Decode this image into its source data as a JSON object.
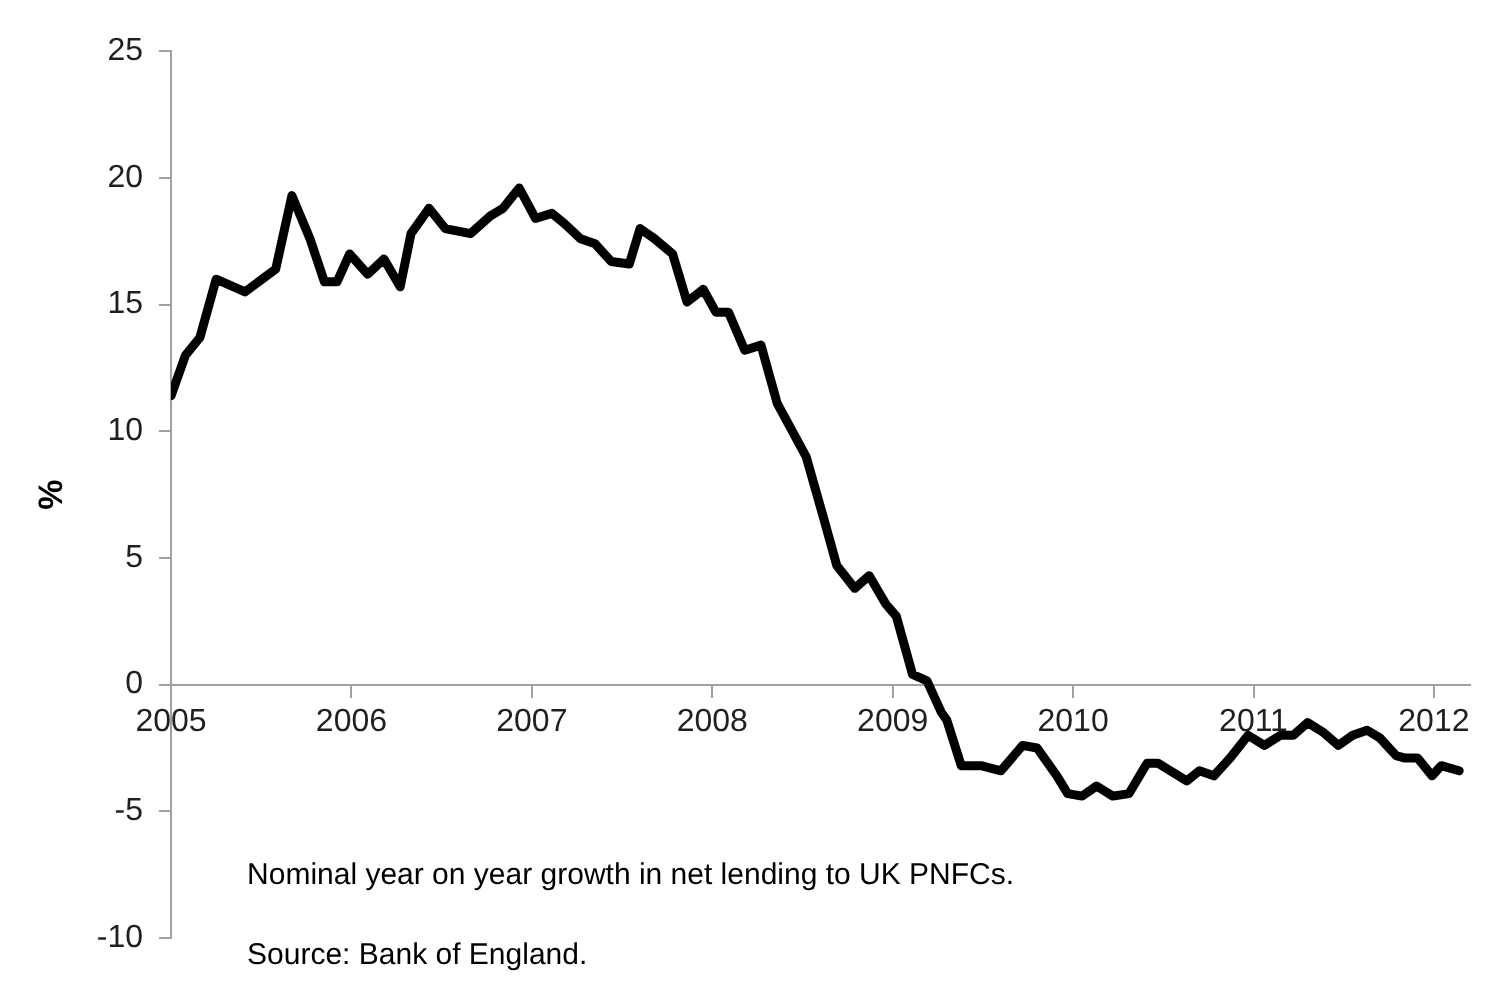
{
  "chart_data": {
    "type": "line",
    "ylabel": "%",
    "annotations": [
      "Nominal year on year growth in net lending to UK PNFCs.",
      "Source: Bank of England."
    ],
    "x": [
      2005.0,
      2005.08,
      2005.16,
      2005.25,
      2005.41,
      2005.58,
      2005.67,
      2005.77,
      2005.85,
      2005.92,
      2005.99,
      2006.09,
      2006.18,
      2006.27,
      2006.33,
      2006.43,
      2006.52,
      2006.66,
      2006.77,
      2006.84,
      2006.93,
      2007.02,
      2007.11,
      2007.18,
      2007.27,
      2007.35,
      2007.44,
      2007.54,
      2007.6,
      2007.68,
      2007.78,
      2007.86,
      2007.95,
      2008.02,
      2008.09,
      2008.18,
      2008.27,
      2008.36,
      2008.52,
      2008.62,
      2008.69,
      2008.79,
      2008.87,
      2008.96,
      2009.02,
      2009.11,
      2009.19,
      2009.27,
      2009.3,
      2009.38,
      2009.49,
      2009.6,
      2009.72,
      2009.8,
      2009.91,
      2009.97,
      2010.05,
      2010.13,
      2010.22,
      2010.31,
      2010.41,
      2010.47,
      2010.63,
      2010.7,
      2010.78,
      2010.87,
      2010.97,
      2011.06,
      2011.15,
      2011.22,
      2011.3,
      2011.39,
      2011.47,
      2011.55,
      2011.63,
      2011.7,
      2011.79,
      2011.84,
      2011.91,
      2011.99,
      2012.04,
      2012.14
    ],
    "series": [
      {
        "color": "#000000",
        "values": [
          11.4,
          13.0,
          13.7,
          16.0,
          15.5,
          16.4,
          19.3,
          17.6,
          15.9,
          15.9,
          17.0,
          16.2,
          16.8,
          15.7,
          17.8,
          18.8,
          18.0,
          17.8,
          18.5,
          18.8,
          19.6,
          18.4,
          18.6,
          18.2,
          17.6,
          17.4,
          16.7,
          16.6,
          18.0,
          17.6,
          17.0,
          15.1,
          15.6,
          14.7,
          14.7,
          13.2,
          13.4,
          11.1,
          9.0,
          6.5,
          4.7,
          3.8,
          4.3,
          3.2,
          2.7,
          0.4,
          0.15,
          -1.1,
          -1.4,
          -3.2,
          -3.2,
          -3.4,
          -2.4,
          -2.5,
          -3.6,
          -4.3,
          -4.4,
          -4.0,
          -4.4,
          -4.3,
          -3.1,
          -3.1,
          -3.8,
          -3.4,
          -3.6,
          -2.9,
          -2.0,
          -2.4,
          -2.0,
          -2.0,
          -1.5,
          -1.9,
          -2.4,
          -2.0,
          -1.8,
          -2.1,
          -2.8,
          -2.9,
          -2.9,
          -3.6,
          -3.2,
          -3.4
        ]
      }
    ],
    "xlim": [
      2005,
      2012.2
    ],
    "xticks": [
      2005,
      2006,
      2007,
      2008,
      2009,
      2010,
      2011,
      2012
    ],
    "ylim": [
      -10,
      25
    ],
    "yticks": [
      -10,
      -5,
      0,
      5,
      10,
      15,
      20,
      25
    ],
    "grid": false,
    "legend": false,
    "marker": "none",
    "line_style": "solid"
  }
}
